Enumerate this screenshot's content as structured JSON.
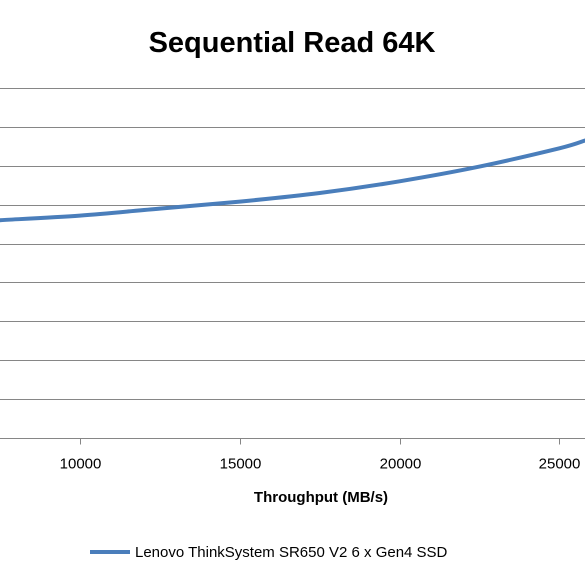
{
  "chart_data": {
    "type": "line",
    "title": "Sequential Read 64K",
    "xlabel": "Throughput (MB/s)",
    "ylabel": "",
    "xlim": [
      7500,
      25800
    ],
    "ylim": [
      0,
      9
    ],
    "x_ticks": [
      10000,
      15000,
      20000,
      25000
    ],
    "x_tick_labels": [
      "10000",
      "15000",
      "20000",
      "25000"
    ],
    "y_gridlines": [
      1,
      2,
      3,
      4,
      5,
      6,
      7,
      8,
      9
    ],
    "grid": true,
    "legend": "bottom",
    "series": [
      {
        "name": "Lenovo ThinkSystem SR650 V2 6 x Gen4 SSD",
        "color": "#4a7ebb",
        "x": [
          7500,
          10000,
          12500,
          15000,
          17500,
          20000,
          22500,
          25000,
          25800
        ],
        "y": [
          5.6,
          5.72,
          5.9,
          6.08,
          6.3,
          6.6,
          6.98,
          7.45,
          7.65
        ]
      }
    ]
  }
}
